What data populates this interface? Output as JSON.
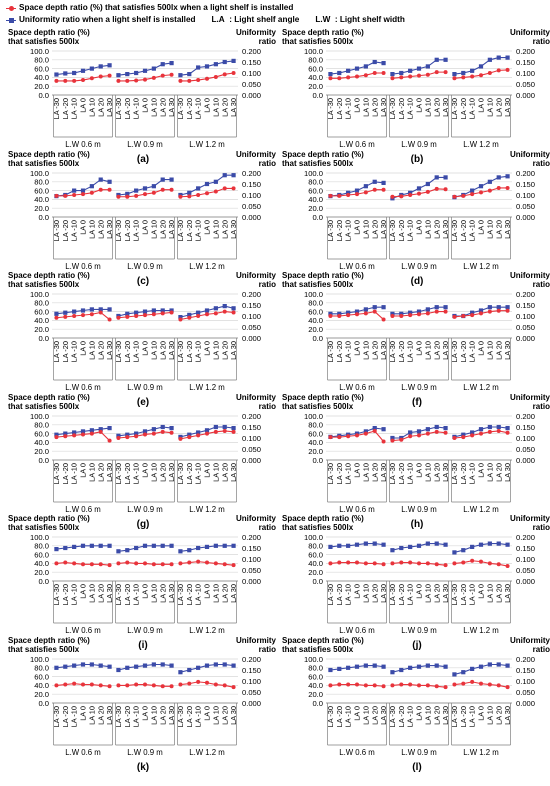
{
  "legend": {
    "series1": "Space depth ratio (%) that satisfies 500lx when a light shelf is installed",
    "series2": "Uniformity ratio when a light shelf is installed",
    "la_def": "L.A  : Light shelf angle",
    "lw_def": "L.W  : Light shelf width"
  },
  "colors": {
    "depth": "#e8333b",
    "uniformity": "#3b4ba8",
    "grid": "#d9d9d9",
    "axis": "#7f7f7f"
  },
  "chart_data": [
    {
      "label": "(a)",
      "type": "line",
      "ylabel": "Space depth ratio (%) that satisfies 500lx",
      "y2label": "Uniformity ratio",
      "ylim": [
        0,
        100
      ],
      "y2lim": [
        0,
        0.2
      ],
      "yticks": [
        "0.0",
        "20.0",
        "40.0",
        "60.0",
        "80.0",
        "100.0"
      ],
      "y2ticks": [
        "0.000",
        "0.050",
        "0.100",
        "0.150",
        "0.200"
      ],
      "categories": [
        "LA -30",
        "LA -20",
        "LA -10",
        "LA 0",
        "LA 10",
        "LA 20",
        "LA 30"
      ],
      "groups": [
        "L.W 0.6  m",
        "L.W 0.9  m",
        "L.W 1.2  m"
      ],
      "depth": [
        [
          32,
          32,
          32,
          34,
          38,
          42,
          44
        ],
        [
          32,
          32,
          33,
          35,
          39,
          44,
          46
        ],
        [
          32,
          32,
          34,
          37,
          41,
          47,
          50
        ]
      ],
      "uniformity": [
        [
          0.093,
          0.098,
          0.1,
          0.11,
          0.12,
          0.13,
          0.135
        ],
        [
          0.09,
          0.095,
          0.1,
          0.11,
          0.12,
          0.14,
          0.145
        ],
        [
          0.09,
          0.095,
          0.125,
          0.13,
          0.14,
          0.15,
          0.155
        ]
      ]
    },
    {
      "label": "(b)",
      "type": "line",
      "ylabel": "Space depth ratio (%) that satisfies 500lx",
      "y2label": "Uniformity ratio",
      "ylim": [
        0,
        100
      ],
      "y2lim": [
        0,
        0.2
      ],
      "yticks": [
        "0.0",
        "20.0",
        "40.0",
        "60.0",
        "80.0",
        "100.0"
      ],
      "y2ticks": [
        "0.000",
        "0.050",
        "0.100",
        "0.150",
        "0.200"
      ],
      "categories": [
        "LA -30",
        "LA -20",
        "LA -10",
        "LA 0",
        "LA 10",
        "LA 20",
        "LA 30"
      ],
      "groups": [
        "L.W 0.6  m",
        "L.W 0.9  m",
        "L.W 1.2  m"
      ],
      "depth": [
        [
          38,
          38,
          40,
          42,
          45,
          50,
          50
        ],
        [
          38,
          40,
          42,
          44,
          46,
          52,
          52
        ],
        [
          38,
          40,
          42,
          45,
          50,
          56,
          57
        ]
      ],
      "uniformity": [
        [
          0.095,
          0.1,
          0.11,
          0.12,
          0.13,
          0.15,
          0.145
        ],
        [
          0.095,
          0.1,
          0.11,
          0.12,
          0.13,
          0.16,
          0.16
        ],
        [
          0.095,
          0.1,
          0.11,
          0.13,
          0.16,
          0.17,
          0.17
        ]
      ]
    },
    {
      "label": "(c)",
      "type": "line",
      "ylabel": "Space depth ratio (%) that satisfies 500lx",
      "y2label": "Uniformity ratio",
      "ylim": [
        0,
        100
      ],
      "y2lim": [
        0,
        0.2
      ],
      "yticks": [
        "0.0",
        "20.0",
        "40.0",
        "60.0",
        "80.0",
        "100.0"
      ],
      "y2ticks": [
        "0.000",
        "0.050",
        "0.100",
        "0.150",
        "0.200"
      ],
      "categories": [
        "LA -30",
        "LA -20",
        "LA -10",
        "LA 0",
        "LA 10",
        "LA 20",
        "LA 30"
      ],
      "groups": [
        "L.W 0.6  m",
        "L.W 0.9  m",
        "L.W 1.2  m"
      ],
      "depth": [
        [
          48,
          48,
          50,
          52,
          55,
          62,
          62
        ],
        [
          46,
          46,
          48,
          52,
          55,
          62,
          62
        ],
        [
          46,
          47,
          50,
          54,
          58,
          65,
          65
        ]
      ],
      "uniformity": [
        [
          0.095,
          0.1,
          0.12,
          0.12,
          0.14,
          0.17,
          0.16
        ],
        [
          0.1,
          0.105,
          0.12,
          0.13,
          0.14,
          0.17,
          0.17
        ],
        [
          0.1,
          0.11,
          0.13,
          0.15,
          0.16,
          0.19,
          0.19
        ]
      ]
    },
    {
      "label": "(d)",
      "type": "line",
      "ylabel": "Space depth ratio (%) that satisfies 500lx",
      "y2label": "Uniformity ratio",
      "ylim": [
        0,
        100
      ],
      "y2lim": [
        0,
        0.2
      ],
      "yticks": [
        "0.0",
        "20.0",
        "40.0",
        "60.0",
        "80.0",
        "100.0"
      ],
      "y2ticks": [
        "0.000",
        "0.050",
        "0.100",
        "0.150",
        "0.200"
      ],
      "categories": [
        "LA -30",
        "LA -20",
        "LA -10",
        "LA 0",
        "LA 10",
        "LA 20",
        "LA 30"
      ],
      "groups": [
        "L.W 0.6  m",
        "L.W 0.9  m",
        "L.W 1.2  m"
      ],
      "depth": [
        [
          48,
          48,
          50,
          52,
          56,
          62,
          62
        ],
        [
          46,
          47,
          50,
          53,
          57,
          64,
          63
        ],
        [
          46,
          48,
          52,
          56,
          60,
          66,
          66
        ]
      ],
      "uniformity": [
        [
          0.095,
          0.1,
          0.11,
          0.12,
          0.14,
          0.16,
          0.155
        ],
        [
          0.085,
          0.1,
          0.11,
          0.13,
          0.15,
          0.18,
          0.18
        ],
        [
          0.09,
          0.1,
          0.12,
          0.14,
          0.16,
          0.18,
          0.185
        ]
      ]
    },
    {
      "label": "(e)",
      "type": "line",
      "ylabel": "Space depth ratio (%) that satisfies 500lx",
      "y2label": "Uniformity ratio",
      "ylim": [
        0,
        100
      ],
      "y2lim": [
        0,
        0.2
      ],
      "yticks": [
        "0.0",
        "20.0",
        "40.0",
        "60.0",
        "80.0",
        "100.0"
      ],
      "y2ticks": [
        "0.000",
        "0.050",
        "0.100",
        "0.150",
        "0.200"
      ],
      "categories": [
        "LA -30",
        "LA -20",
        "LA -10",
        "LA 0",
        "LA 10",
        "LA 20",
        "LA 30"
      ],
      "groups": [
        "L.W 0.6  m",
        "L.W 0.9  m",
        "L.W 1.2  m"
      ],
      "depth": [
        [
          46,
          48,
          50,
          52,
          54,
          58,
          42
        ],
        [
          46,
          48,
          50,
          52,
          54,
          56,
          58
        ],
        [
          42,
          46,
          50,
          54,
          56,
          60,
          58
        ]
      ],
      "uniformity": [
        [
          0.11,
          0.115,
          0.12,
          0.125,
          0.13,
          0.13,
          0.13
        ],
        [
          0.1,
          0.11,
          0.115,
          0.12,
          0.125,
          0.125,
          0.125
        ],
        [
          0.095,
          0.105,
          0.115,
          0.125,
          0.135,
          0.145,
          0.135
        ]
      ]
    },
    {
      "label": "(f)",
      "type": "line",
      "ylabel": "Space depth ratio (%) that satisfies 500lx",
      "y2label": "Uniformity ratio",
      "ylim": [
        0,
        100
      ],
      "y2lim": [
        0,
        0.2
      ],
      "yticks": [
        "0.0",
        "20.0",
        "40.0",
        "60.0",
        "80.0",
        "100.0"
      ],
      "y2ticks": [
        "0.000",
        "0.050",
        "0.100",
        "0.150",
        "0.200"
      ],
      "categories": [
        "LA -30",
        "LA -20",
        "LA -10",
        "LA 0",
        "LA 10",
        "LA 20",
        "LA 30"
      ],
      "groups": [
        "L.W 0.6  m",
        "L.W 0.9  m",
        "L.W 1.2  m"
      ],
      "depth": [
        [
          50,
          50,
          52,
          54,
          56,
          60,
          42
        ],
        [
          50,
          50,
          52,
          54,
          56,
          60,
          60
        ],
        [
          48,
          50,
          52,
          56,
          60,
          62,
          62
        ]
      ],
      "uniformity": [
        [
          0.11,
          0.11,
          0.115,
          0.12,
          0.13,
          0.14,
          0.14
        ],
        [
          0.11,
          0.11,
          0.115,
          0.12,
          0.13,
          0.14,
          0.14
        ],
        [
          0.1,
          0.1,
          0.115,
          0.125,
          0.14,
          0.14,
          0.14
        ]
      ]
    },
    {
      "label": "(g)",
      "type": "line",
      "ylabel": "Space depth ratio (%) that satisfies 500lx",
      "y2label": "Uniformity ratio",
      "ylim": [
        0,
        100
      ],
      "y2lim": [
        0,
        0.2
      ],
      "yticks": [
        "0.0",
        "20.0",
        "40.0",
        "60.0",
        "80.0",
        "100.0"
      ],
      "y2ticks": [
        "0.000",
        "0.050",
        "0.100",
        "0.150",
        "0.200"
      ],
      "categories": [
        "LA -30",
        "LA -20",
        "LA -10",
        "LA 0",
        "LA 10",
        "LA 20",
        "LA 30"
      ],
      "groups": [
        "L.W 0.6  m",
        "L.W 0.9  m",
        "L.W 1.2  m"
      ],
      "depth": [
        [
          52,
          54,
          56,
          58,
          60,
          64,
          44
        ],
        [
          50,
          52,
          54,
          58,
          60,
          64,
          62
        ],
        [
          48,
          52,
          56,
          60,
          64,
          66,
          64
        ]
      ],
      "uniformity": [
        [
          0.115,
          0.12,
          0.125,
          0.13,
          0.135,
          0.14,
          0.145
        ],
        [
          0.11,
          0.115,
          0.12,
          0.13,
          0.14,
          0.15,
          0.145
        ],
        [
          0.105,
          0.115,
          0.125,
          0.135,
          0.15,
          0.15,
          0.145
        ]
      ]
    },
    {
      "label": "(h)",
      "type": "line",
      "ylabel": "Space depth ratio (%) that satisfies 500lx",
      "y2label": "Uniformity ratio",
      "ylim": [
        0,
        100
      ],
      "y2lim": [
        0,
        0.2
      ],
      "yticks": [
        "0.0",
        "20.0",
        "40.0",
        "60.0",
        "80.0",
        "100.0"
      ],
      "y2ticks": [
        "0.000",
        "0.050",
        "0.100",
        "0.150",
        "0.200"
      ],
      "categories": [
        "LA -30",
        "LA -20",
        "LA -10",
        "LA 0",
        "LA 10",
        "LA 20",
        "LA 30"
      ],
      "groups": [
        "L.W 0.6  m",
        "L.W 0.9  m",
        "L.W 1.2  m"
      ],
      "depth": [
        [
          52,
          52,
          54,
          56,
          60,
          66,
          42
        ],
        [
          44,
          46,
          54,
          56,
          60,
          64,
          62
        ],
        [
          50,
          52,
          56,
          60,
          64,
          66,
          62
        ]
      ],
      "uniformity": [
        [
          0.105,
          0.11,
          0.115,
          0.12,
          0.13,
          0.145,
          0.14
        ],
        [
          0.1,
          0.1,
          0.125,
          0.13,
          0.14,
          0.15,
          0.145
        ],
        [
          0.105,
          0.115,
          0.125,
          0.14,
          0.15,
          0.15,
          0.145
        ]
      ]
    },
    {
      "label": "(i)",
      "type": "line",
      "ylabel": "Space depth ratio (%) that satisfies 500lx",
      "y2label": "Uniformity ratio",
      "ylim": [
        0,
        100
      ],
      "y2lim": [
        0,
        0.2
      ],
      "yticks": [
        "0.0",
        "20.0",
        "40.0",
        "60.0",
        "80.0",
        "100.0"
      ],
      "y2ticks": [
        "0.000",
        "0.050",
        "0.100",
        "0.150",
        "0.200"
      ],
      "categories": [
        "LA -30",
        "LA -20",
        "LA -10",
        "LA 0",
        "LA 10",
        "LA 20",
        "LA 30"
      ],
      "groups": [
        "L.W 0.6  m",
        "L.W 0.9  m",
        "L.W 1.2  m"
      ],
      "depth": [
        [
          40,
          42,
          40,
          38,
          38,
          38,
          36
        ],
        [
          40,
          42,
          40,
          40,
          38,
          38,
          38
        ],
        [
          40,
          42,
          44,
          42,
          40,
          38,
          36
        ]
      ],
      "uniformity": [
        [
          0.145,
          0.15,
          0.155,
          0.16,
          0.16,
          0.16,
          0.16
        ],
        [
          0.135,
          0.14,
          0.15,
          0.16,
          0.16,
          0.16,
          0.16
        ],
        [
          0.135,
          0.14,
          0.15,
          0.155,
          0.16,
          0.16,
          0.16
        ]
      ]
    },
    {
      "label": "(j)",
      "type": "line",
      "ylabel": "Space depth ratio (%) that satisfies 500lx",
      "y2label": "Uniformity ratio",
      "ylim": [
        0,
        100
      ],
      "y2lim": [
        0,
        0.2
      ],
      "yticks": [
        "0.0",
        "20.0",
        "40.0",
        "60.0",
        "80.0",
        "100.0"
      ],
      "y2ticks": [
        "0.000",
        "0.050",
        "0.100",
        "0.150",
        "0.200"
      ],
      "categories": [
        "LA -30",
        "LA -20",
        "LA -10",
        "LA 0",
        "LA 10",
        "LA 20",
        "LA 30"
      ],
      "groups": [
        "L.W 0.6  m",
        "L.W 0.9  m",
        "L.W 1.2  m"
      ],
      "depth": [
        [
          40,
          42,
          42,
          42,
          40,
          40,
          38
        ],
        [
          40,
          42,
          42,
          40,
          40,
          38,
          36
        ],
        [
          40,
          42,
          46,
          44,
          40,
          38,
          34
        ]
      ],
      "uniformity": [
        [
          0.155,
          0.16,
          0.16,
          0.165,
          0.17,
          0.17,
          0.165
        ],
        [
          0.14,
          0.15,
          0.155,
          0.16,
          0.17,
          0.17,
          0.165
        ],
        [
          0.13,
          0.14,
          0.155,
          0.165,
          0.17,
          0.17,
          0.165
        ]
      ]
    },
    {
      "label": "(k)",
      "type": "line",
      "ylabel": "Space depth ratio (%) that satisfies 500lx",
      "y2label": "Uniformity ratio",
      "ylim": [
        0,
        100
      ],
      "y2lim": [
        0,
        0.2
      ],
      "yticks": [
        "0.0",
        "20.0",
        "40.0",
        "60.0",
        "80.0",
        "100.0"
      ],
      "y2ticks": [
        "0.000",
        "0.050",
        "0.100",
        "0.150",
        "0.200"
      ],
      "categories": [
        "LA -30",
        "LA -20",
        "LA -10",
        "LA 0",
        "LA 10",
        "LA 20",
        "LA 30"
      ],
      "groups": [
        "L.W 0.6  m",
        "L.W 0.9  m",
        "L.W 1.2  m"
      ],
      "depth": [
        [
          40,
          42,
          44,
          42,
          42,
          40,
          38
        ],
        [
          40,
          40,
          42,
          42,
          40,
          38,
          38
        ],
        [
          42,
          44,
          48,
          46,
          42,
          40,
          36
        ]
      ],
      "uniformity": [
        [
          0.16,
          0.165,
          0.17,
          0.175,
          0.175,
          0.17,
          0.165
        ],
        [
          0.15,
          0.16,
          0.165,
          0.17,
          0.175,
          0.175,
          0.17
        ],
        [
          0.14,
          0.15,
          0.16,
          0.17,
          0.175,
          0.175,
          0.17
        ]
      ]
    },
    {
      "label": "(l)",
      "type": "line",
      "ylabel": "Space depth ratio (%) that satisfies 500lx",
      "y2label": "Uniformity ratio",
      "ylim": [
        0,
        100
      ],
      "y2lim": [
        0,
        0.2
      ],
      "yticks": [
        "0.0",
        "20.0",
        "40.0",
        "60.0",
        "80.0",
        "100.0"
      ],
      "y2ticks": [
        "0.000",
        "0.050",
        "0.100",
        "0.150",
        "0.200"
      ],
      "categories": [
        "LA -30",
        "LA -20",
        "LA -10",
        "LA 0",
        "LA 10",
        "LA 20",
        "LA 30"
      ],
      "groups": [
        "L.W 0.6  m",
        "L.W 0.9  m",
        "L.W 1.2  m"
      ],
      "depth": [
        [
          40,
          42,
          42,
          42,
          40,
          40,
          38
        ],
        [
          40,
          42,
          42,
          40,
          40,
          38,
          36
        ],
        [
          42,
          44,
          48,
          44,
          42,
          40,
          36
        ]
      ],
      "uniformity": [
        [
          0.15,
          0.155,
          0.16,
          0.165,
          0.17,
          0.17,
          0.165
        ],
        [
          0.14,
          0.15,
          0.16,
          0.165,
          0.17,
          0.17,
          0.165
        ],
        [
          0.13,
          0.14,
          0.155,
          0.165,
          0.175,
          0.175,
          0.17
        ]
      ]
    }
  ]
}
